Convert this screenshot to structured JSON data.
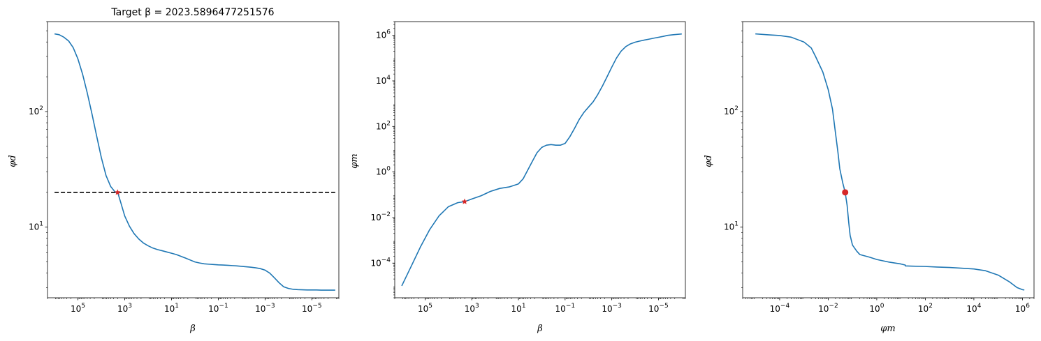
{
  "chart_data": [
    {
      "type": "line",
      "title": "Target β = 2023.5896477251576",
      "xlabel": "β",
      "ylabel": "φd",
      "xscale": "log",
      "yscale": "log",
      "x_inverted": true,
      "xlim": [
        2000000,
        7e-07
      ],
      "ylim": [
        2.45,
        600
      ],
      "xticks": [
        {
          "value": 100000,
          "base": "10",
          "exp": "5"
        },
        {
          "value": 1000,
          "base": "10",
          "exp": "3"
        },
        {
          "value": 10,
          "base": "10",
          "exp": "1"
        },
        {
          "value": 0.1,
          "base": "10",
          "exp": "−1"
        },
        {
          "value": 0.001,
          "base": "10",
          "exp": "−3"
        },
        {
          "value": 1e-05,
          "base": "10",
          "exp": "−5"
        }
      ],
      "yticks": [
        {
          "value": 10,
          "base": "10",
          "exp": "1"
        },
        {
          "value": 100,
          "base": "10",
          "exp": "2"
        }
      ],
      "series": [
        {
          "color": "#1f77b4",
          "style": "solid",
          "x": [
            1000000,
            630000,
            400000,
            250000,
            160000,
            100000,
            63000,
            40000,
            25000,
            16000,
            10000,
            6300,
            4000,
            2500,
            2000,
            1500,
            1000,
            630,
            400,
            250,
            160,
            100,
            63,
            40,
            25,
            16,
            10,
            6.3,
            4,
            2.5,
            1.6,
            1,
            0.63,
            0.4,
            0.25,
            0.16,
            0.1,
            0.063,
            0.04,
            0.025,
            0.016,
            0.01,
            0.0063,
            0.004,
            0.0025,
            0.0016,
            0.001,
            0.00063,
            0.0004,
            0.00025,
            0.00016,
            0.0001,
            6.3e-05,
            4e-05,
            2.5e-05,
            1.6e-05,
            1e-05,
            6.3e-06,
            4e-06,
            2.5e-06,
            1.6e-06,
            1e-06
          ],
          "y": [
            470,
            462,
            440,
            408,
            358,
            285,
            210,
            145,
            95,
            62,
            40,
            28,
            22.5,
            20,
            20,
            16.5,
            12.5,
            10.2,
            8.8,
            7.9,
            7.3,
            6.9,
            6.6,
            6.4,
            6.25,
            6.1,
            5.95,
            5.8,
            5.6,
            5.4,
            5.2,
            5.0,
            4.9,
            4.82,
            4.78,
            4.75,
            4.72,
            4.7,
            4.68,
            4.65,
            4.62,
            4.58,
            4.54,
            4.5,
            4.45,
            4.38,
            4.25,
            4.0,
            3.65,
            3.3,
            3.05,
            2.95,
            2.9,
            2.88,
            2.87,
            2.86,
            2.86,
            2.86,
            2.85,
            2.85,
            2.85,
            2.85
          ]
        },
        {
          "color": "#000000",
          "style": "dashed",
          "x": [
            1000000,
            1e-06
          ],
          "y": [
            20,
            20
          ]
        }
      ],
      "markers": [
        {
          "x": 2023.5896477251576,
          "y": 20,
          "shape": "star",
          "color": "#d62728"
        }
      ]
    },
    {
      "type": "line",
      "title": "",
      "xlabel": "β",
      "ylabel": "φm",
      "xscale": "log",
      "yscale": "log",
      "x_inverted": true,
      "xlim": [
        2000000,
        7e-07
      ],
      "ylim": [
        3e-06,
        4000000
      ],
      "xticks": [
        {
          "value": 100000,
          "base": "10",
          "exp": "5"
        },
        {
          "value": 1000,
          "base": "10",
          "exp": "3"
        },
        {
          "value": 10,
          "base": "10",
          "exp": "1"
        },
        {
          "value": 0.1,
          "base": "10",
          "exp": "−1"
        },
        {
          "value": 0.001,
          "base": "10",
          "exp": "−3"
        },
        {
          "value": 1e-05,
          "base": "10",
          "exp": "−5"
        }
      ],
      "yticks": [
        {
          "value": 0.0001,
          "base": "10",
          "exp": "−4"
        },
        {
          "value": 0.01,
          "base": "10",
          "exp": "−2"
        },
        {
          "value": 1,
          "base": "10",
          "exp": "0"
        },
        {
          "value": 100,
          "base": "10",
          "exp": "2"
        },
        {
          "value": 10000,
          "base": "10",
          "exp": "4"
        },
        {
          "value": 1000000,
          "base": "10",
          "exp": "6"
        }
      ],
      "series": [
        {
          "color": "#1f77b4",
          "style": "solid",
          "x": [
            1000000,
            400000,
            160000,
            63000,
            25000,
            10000,
            4000,
            2000,
            1000,
            400,
            160,
            63,
            25,
            10,
            6.3,
            4,
            2.5,
            1.6,
            1,
            0.63,
            0.4,
            0.25,
            0.16,
            0.1,
            0.063,
            0.04,
            0.025,
            0.016,
            0.01,
            0.0063,
            0.004,
            0.0025,
            0.0016,
            0.001,
            0.00063,
            0.0004,
            0.00025,
            0.00016,
            0.0001,
            6.3e-05,
            4e-05,
            2.5e-05,
            1.6e-05,
            1e-05,
            6.3e-06,
            4e-06,
            2.5e-06,
            1.6e-06,
            1e-06
          ],
          "y": [
            1e-05,
            7e-05,
            0.0005,
            0.003,
            0.012,
            0.03,
            0.045,
            0.05,
            0.065,
            0.09,
            0.14,
            0.19,
            0.22,
            0.3,
            0.5,
            1.2,
            3,
            7,
            12,
            15,
            16,
            15,
            15,
            18,
            35,
            80,
            200,
            400,
            700,
            1200,
            2500,
            6000,
            15000,
            40000,
            100000,
            200000,
            320000,
            420000,
            500000,
            560000,
            620000,
            680000,
            750000,
            820000,
            900000,
            1000000,
            1050000,
            1100000,
            1150000
          ]
        }
      ],
      "markers": [
        {
          "x": 2023.5896477251576,
          "y": 0.05,
          "shape": "star",
          "color": "#d62728"
        }
      ]
    },
    {
      "type": "line",
      "title": "",
      "xlabel": "φm",
      "ylabel": "φd",
      "xscale": "log",
      "yscale": "log",
      "x_inverted": false,
      "xlim": [
        3e-06,
        3000000
      ],
      "ylim": [
        2.45,
        600
      ],
      "xticks": [
        {
          "value": 0.0001,
          "base": "10",
          "exp": "−4"
        },
        {
          "value": 0.01,
          "base": "10",
          "exp": "−2"
        },
        {
          "value": 1,
          "base": "10",
          "exp": "0"
        },
        {
          "value": 100,
          "base": "10",
          "exp": "2"
        },
        {
          "value": 10000,
          "base": "10",
          "exp": "4"
        },
        {
          "value": 1000000,
          "base": "10",
          "exp": "6"
        }
      ],
      "yticks": [
        {
          "value": 10,
          "base": "10",
          "exp": "1"
        },
        {
          "value": 100,
          "base": "10",
          "exp": "2"
        }
      ],
      "series": [
        {
          "color": "#1f77b4",
          "style": "solid",
          "x": [
            1e-05,
            3e-05,
            0.0001,
            0.0003,
            0.001,
            0.002,
            0.003,
            0.006,
            0.01,
            0.015,
            0.02,
            0.025,
            0.03,
            0.04,
            0.05,
            0.06,
            0.07,
            0.08,
            0.1,
            0.15,
            0.2,
            0.5,
            1,
            3,
            10,
            15,
            15,
            30,
            100,
            300,
            1000,
            3000,
            10000,
            30000,
            100000,
            300000,
            600000,
            1000000,
            1200000
          ],
          "y": [
            470,
            462,
            455,
            440,
            400,
            355,
            300,
            220,
            155,
            105,
            65,
            45,
            32,
            24,
            20,
            15.5,
            11,
            8.5,
            7,
            6.2,
            5.8,
            5.5,
            5.25,
            5.0,
            4.8,
            4.7,
            4.62,
            4.6,
            4.57,
            4.52,
            4.48,
            4.42,
            4.35,
            4.2,
            3.85,
            3.35,
            3.0,
            2.88,
            2.86
          ]
        }
      ],
      "markers": [
        {
          "x": 0.05,
          "y": 20,
          "shape": "circle",
          "color": "#d62728"
        }
      ]
    }
  ]
}
